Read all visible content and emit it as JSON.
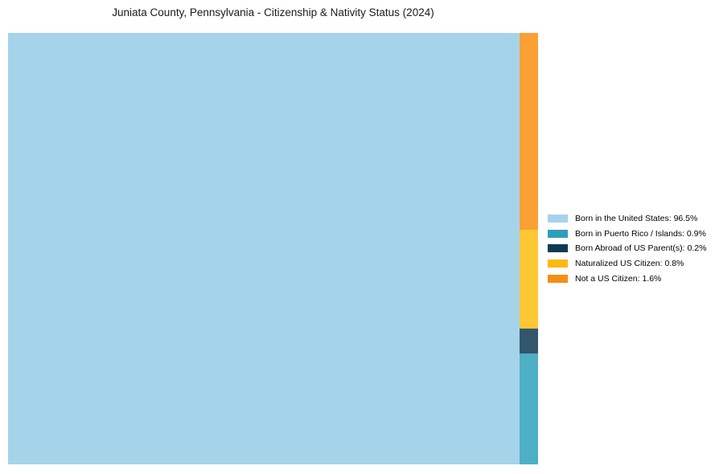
{
  "title": "Juniata County, Pennsylvania - Citizenship & Nativity Status (2024)",
  "chart_data": {
    "type": "treemap",
    "title": "Juniata County, Pennsylvania - Citizenship & Nativity Status (2024)",
    "items": [
      {
        "label": "Born in the United States",
        "value_pct": 96.5,
        "legend_label": "Born in the United States: 96.5%",
        "legend_color": "#a6d3ea",
        "tile_color": "#a5d4ea"
      },
      {
        "label": "Born in Puerto Rico / Islands",
        "value_pct": 0.9,
        "legend_label": "Born in Puerto Rico / Islands: 0.9%",
        "legend_color": "#2f9fbc",
        "tile_color": "#4eafc6"
      },
      {
        "label": "Born Abroad of US Parent(s)",
        "value_pct": 0.2,
        "legend_label": "Born Abroad of US Parent(s): 0.2%",
        "legend_color": "#0d3a53",
        "tile_color": "#33566d"
      },
      {
        "label": "Naturalized US Citizen",
        "value_pct": 0.8,
        "legend_label": "Naturalized US Citizen: 0.8%",
        "legend_color": "#fdb813",
        "tile_color": "#fec734"
      },
      {
        "label": "Not a US Citizen",
        "value_pct": 1.6,
        "legend_label": "Not a US Citizen: 1.6%",
        "legend_color": "#f88d11",
        "tile_color": "#faa035"
      }
    ],
    "legend_position": "right-center",
    "layout": "single large tile on left; remaining categories stacked in a narrow right column, top to bottom: Not a US Citizen, Naturalized US Citizen, Born Abroad of US Parent(s), Born in Puerto Rico / Islands",
    "background_color": "#ffffff"
  }
}
